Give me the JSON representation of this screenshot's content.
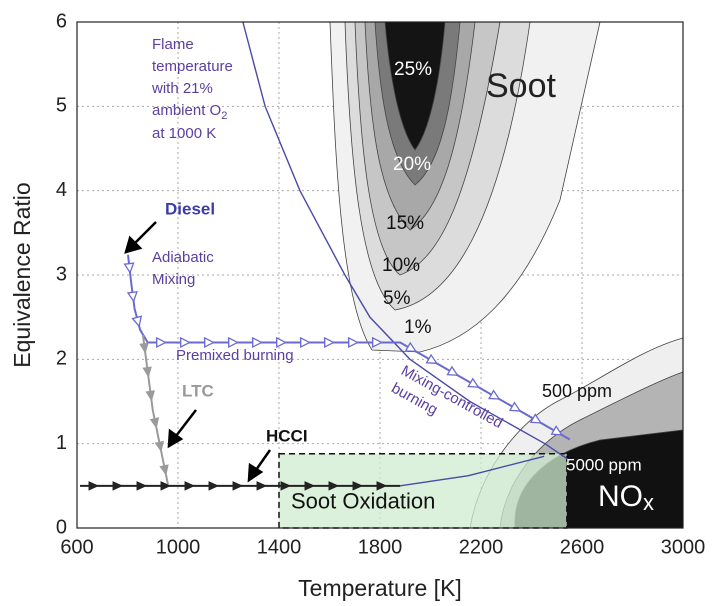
{
  "chart_data": {
    "type": "line",
    "xlabel": "Temperature [K]",
    "ylabel": "Equivalence Ratio",
    "xlim": [
      600,
      3000
    ],
    "ylim": [
      0,
      6
    ],
    "xticks": [
      600,
      1000,
      1400,
      1800,
      2200,
      2600,
      3000
    ],
    "yticks": [
      0,
      1,
      2,
      3,
      4,
      5,
      6
    ],
    "grid": true,
    "series": [
      {
        "color": "#4a4aa8",
        "marker": "none",
        "x": [
          1257,
          1345,
          1483,
          1661,
          1760,
          1919,
          2156,
          2453,
          2552
        ],
        "values": [
          6,
          5,
          4,
          3,
          2.5,
          2,
          1.5,
          1,
          0.8
        ]
      },
      {
        "color": "#4a4aa8",
        "marker": "none",
        "x": [
          1880,
          2150,
          2450
        ],
        "values": [
          0.5,
          0.62,
          0.85
        ]
      },
      {
        "color": "#6a6ad0",
        "marker": "open-arrow",
        "x": [
          802,
          815,
          828,
          850,
          880,
          1880,
          2552
        ],
        "values": [
          3.24,
          2.9,
          2.6,
          2.35,
          2.2,
          2.2,
          1.05
        ]
      },
      {
        "color": "#9a9a9a",
        "marker": "filled-arrow",
        "x": [
          861,
          900,
          960
        ],
        "values": [
          2.29,
          1.4,
          0.52
        ]
      },
      {
        "color": "#222222",
        "marker": "filled-arrow",
        "x": [
          612,
          1880
        ],
        "values": [
          0.5,
          0.5
        ]
      }
    ],
    "region": {
      "label": "Soot Oxidation",
      "xlim": [
        1400,
        2540
      ],
      "ylim": [
        0,
        0.88
      ],
      "color": "#cfeccf"
    },
    "annotations": {
      "flame": [
        "Flame",
        "temperature",
        "with 21%",
        "ambient O",
        "2",
        "at 1000 K"
      ],
      "diesel": "Diesel",
      "adiabatic": [
        "Adiabatic",
        "Mixing"
      ],
      "premixed": "Premixed burning",
      "ltc": "LTC",
      "hcci": "HCCI",
      "mixing": [
        "Mixing-controlled",
        "burning"
      ],
      "soot": "Soot",
      "soot_levels": [
        "25%",
        "20%",
        "15%",
        "10%",
        "5%",
        "1%"
      ],
      "nox_levels": [
        "500 ppm",
        "5000 ppm"
      ],
      "nox": [
        "NO",
        "x"
      ]
    }
  }
}
